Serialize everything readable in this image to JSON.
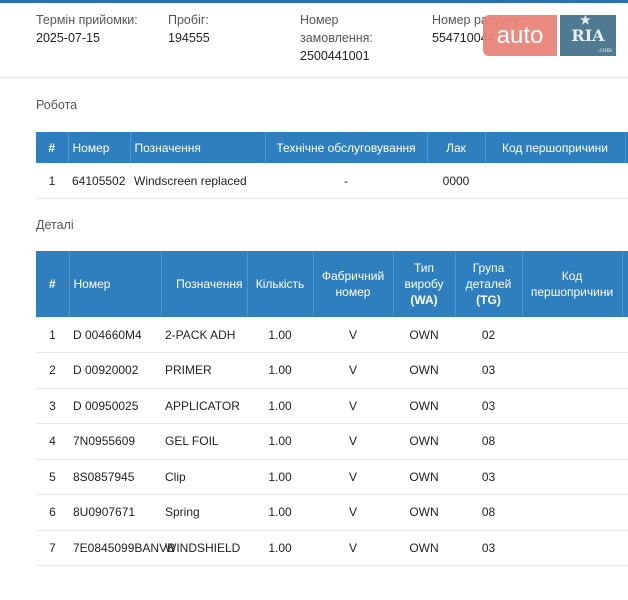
{
  "info": {
    "acceptance_date": {
      "label": "Термін прийомки:",
      "value": "2025-07-15"
    },
    "mileage": {
      "label": "Пробіг:",
      "value": "194555"
    },
    "order_number": {
      "label": "Номер замовлення:",
      "value": "2500441001"
    },
    "invoice_number": {
      "label": "Номер рахунку:",
      "value": "554710044"
    }
  },
  "logo": {
    "auto": "auto",
    "ria": "RIA",
    "com": ".com"
  },
  "work": {
    "title": "Робота",
    "headers": [
      "#",
      "Номер",
      "Позначення",
      "Технічне обслуговування",
      "Лак",
      "Код першопричини"
    ],
    "rows": [
      [
        "1",
        "64105502",
        "Windscreen replaced",
        "-",
        "0000",
        ""
      ]
    ]
  },
  "parts": {
    "title": "Деталі",
    "headers": {
      "num": "#",
      "number": "Номер",
      "designation": "Позначення",
      "qty": "Кількість",
      "factory": "Фабричний номер",
      "type": "Тип виробу",
      "type_code": "(WA)",
      "group": "Група деталей",
      "group_code": "(TG)",
      "cause": "Код першопричини"
    },
    "rows": [
      [
        "1",
        "D 004660M4",
        "2-PACK ADH",
        "1.00",
        "V",
        "OWN",
        "02"
      ],
      [
        "2",
        "D 00920002",
        "PRIMER",
        "1.00",
        "V",
        "OWN",
        "03"
      ],
      [
        "3",
        "D 00950025",
        "APPLICATOR",
        "1.00",
        "V",
        "OWN",
        "03"
      ],
      [
        "4",
        "7N0955609",
        "GEL FOIL",
        "1.00",
        "V",
        "OWN",
        "08"
      ],
      [
        "5",
        "8S0857945",
        "Clip",
        "1.00",
        "V",
        "OWN",
        "03"
      ],
      [
        "6",
        "8U0907671",
        "Spring",
        "1.00",
        "V",
        "OWN",
        "08"
      ],
      [
        "7",
        "7E0845099BANVB",
        "WINDSHIELD",
        "1.00",
        "V",
        "OWN",
        "03"
      ]
    ]
  }
}
